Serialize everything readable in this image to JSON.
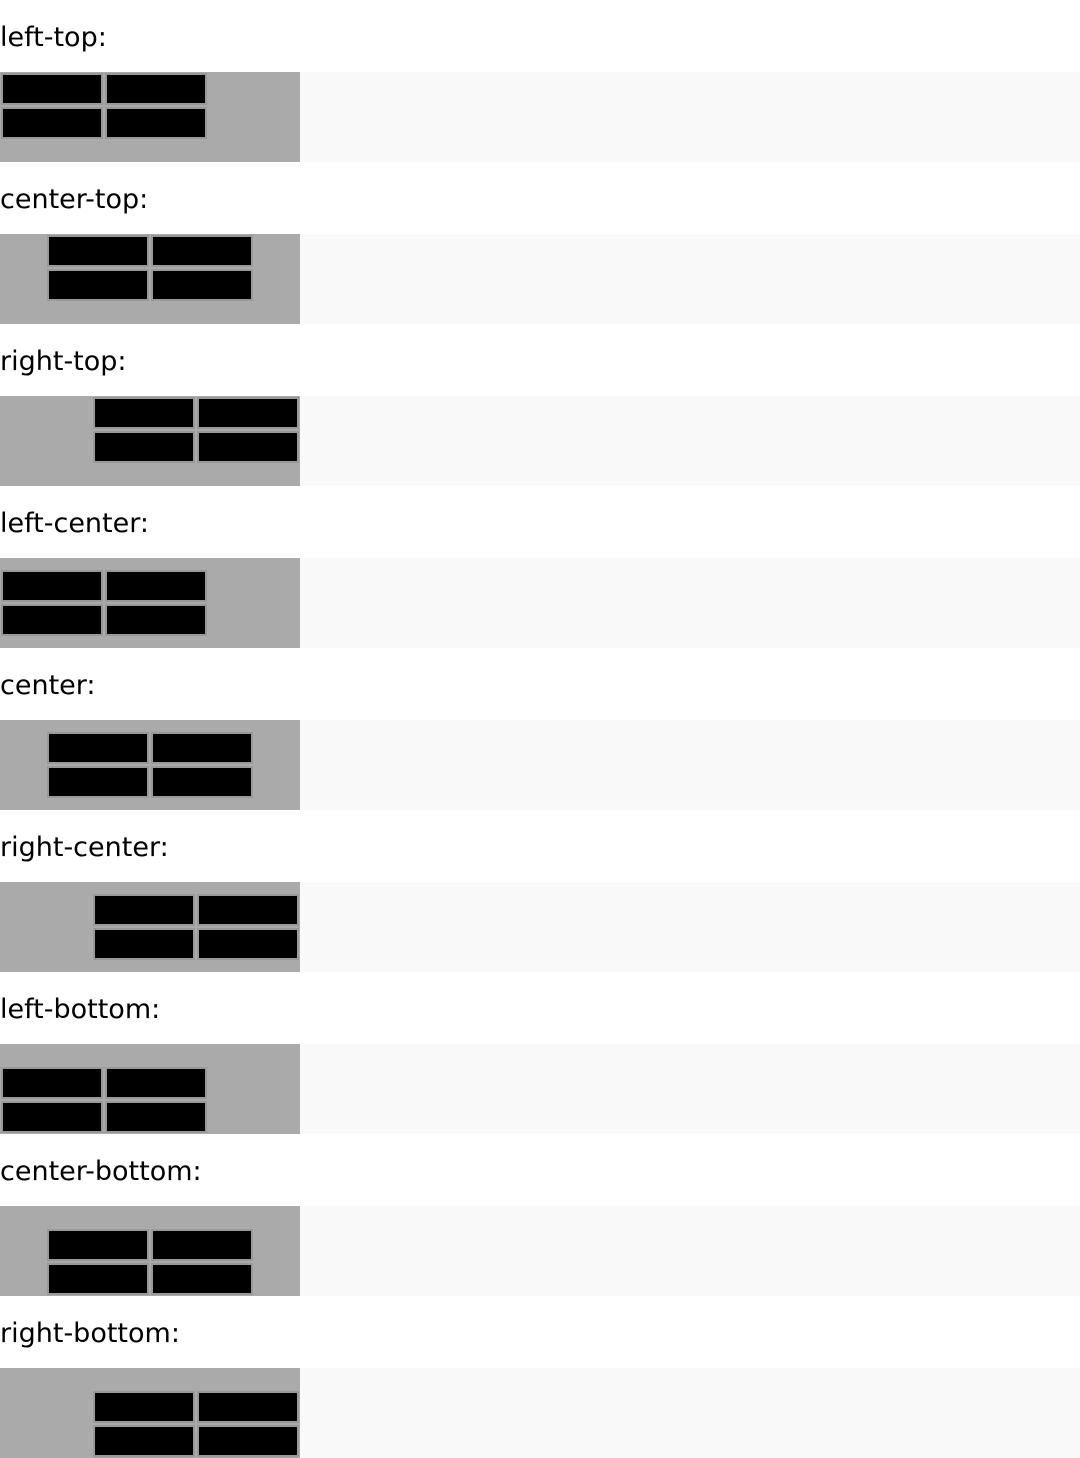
{
  "sections": [
    {
      "label": "left-top:"
    },
    {
      "label": "center-top:"
    },
    {
      "label": "right-top:"
    },
    {
      "label": "left-center:"
    },
    {
      "label": "center:"
    },
    {
      "label": "right-center:"
    },
    {
      "label": "left-bottom:"
    },
    {
      "label": "center-bottom:"
    },
    {
      "label": "right-bottom:"
    }
  ],
  "colors": {
    "page_background": "#ffffff",
    "row_background": "#f9f9f9",
    "box_background": "#aaaaaa",
    "cell_fill": "#000000",
    "cell_border": "#999999"
  }
}
